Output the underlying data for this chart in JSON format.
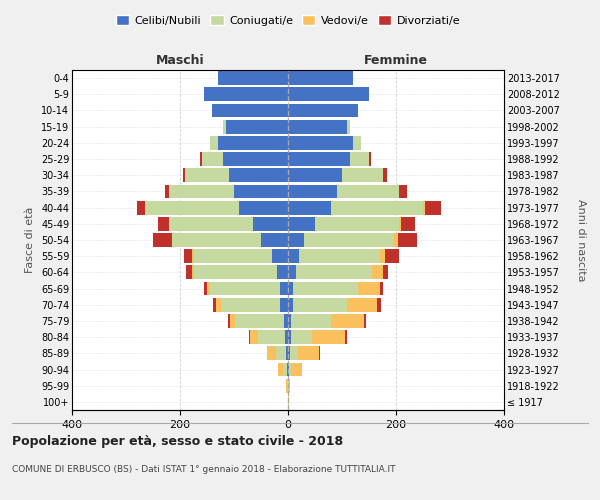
{
  "age_groups": [
    "100+",
    "95-99",
    "90-94",
    "85-89",
    "80-84",
    "75-79",
    "70-74",
    "65-69",
    "60-64",
    "55-59",
    "50-54",
    "45-49",
    "40-44",
    "35-39",
    "30-34",
    "25-29",
    "20-24",
    "15-19",
    "10-14",
    "5-9",
    "0-4"
  ],
  "birth_years": [
    "≤ 1917",
    "1918-1922",
    "1923-1927",
    "1928-1932",
    "1933-1937",
    "1938-1942",
    "1943-1947",
    "1948-1952",
    "1953-1957",
    "1958-1962",
    "1963-1967",
    "1968-1972",
    "1973-1977",
    "1978-1982",
    "1983-1987",
    "1988-1992",
    "1993-1997",
    "1998-2002",
    "2003-2007",
    "2008-2012",
    "2013-2017"
  ],
  "colors": {
    "celibi": "#4472c4",
    "coniugati": "#c6d9a0",
    "vedovi": "#fac05e",
    "divorziati": "#c0312b"
  },
  "males": {
    "celibi": [
      0,
      0,
      1,
      3,
      5,
      8,
      15,
      15,
      20,
      30,
      50,
      65,
      90,
      100,
      110,
      120,
      130,
      115,
      140,
      155,
      130
    ],
    "coniugati": [
      0,
      1,
      8,
      20,
      50,
      90,
      110,
      130,
      155,
      145,
      165,
      155,
      175,
      120,
      80,
      40,
      15,
      5,
      0,
      0,
      0
    ],
    "vedovi": [
      0,
      2,
      10,
      15,
      15,
      10,
      8,
      5,
      3,
      2,
      0,
      0,
      0,
      0,
      0,
      0,
      0,
      0,
      0,
      0,
      0
    ],
    "divorziati": [
      0,
      0,
      0,
      0,
      2,
      3,
      5,
      5,
      10,
      15,
      35,
      20,
      15,
      8,
      5,
      3,
      0,
      0,
      0,
      0,
      0
    ]
  },
  "females": {
    "nubili": [
      0,
      0,
      1,
      3,
      5,
      5,
      10,
      10,
      15,
      20,
      30,
      50,
      80,
      90,
      100,
      115,
      120,
      110,
      130,
      150,
      120
    ],
    "coniugate": [
      0,
      1,
      5,
      15,
      40,
      75,
      100,
      120,
      140,
      150,
      165,
      155,
      170,
      115,
      75,
      35,
      15,
      5,
      0,
      0,
      0
    ],
    "vedove": [
      1,
      3,
      20,
      40,
      60,
      60,
      55,
      40,
      20,
      10,
      8,
      5,
      3,
      0,
      0,
      0,
      0,
      0,
      0,
      0,
      0
    ],
    "divorziate": [
      0,
      0,
      0,
      2,
      5,
      5,
      8,
      5,
      10,
      25,
      35,
      25,
      30,
      15,
      8,
      3,
      0,
      0,
      0,
      0,
      0
    ]
  },
  "title": "Popolazione per età, sesso e stato civile - 2018",
  "subtitle": "COMUNE DI ERBUSCO (BS) - Dati ISTAT 1° gennaio 2018 - Elaborazione TUTTITALIA.IT",
  "xlabel_left": "Maschi",
  "xlabel_right": "Femmine",
  "ylabel_left": "Fasce di età",
  "ylabel_right": "Anni di nascita",
  "xlim": 400,
  "legend_labels": [
    "Celibi/Nubili",
    "Coniugati/e",
    "Vedovi/e",
    "Divorziati/e"
  ],
  "bg_color": "#f0f0f0",
  "plot_bg": "#ffffff",
  "grid_color": "#cccccc"
}
